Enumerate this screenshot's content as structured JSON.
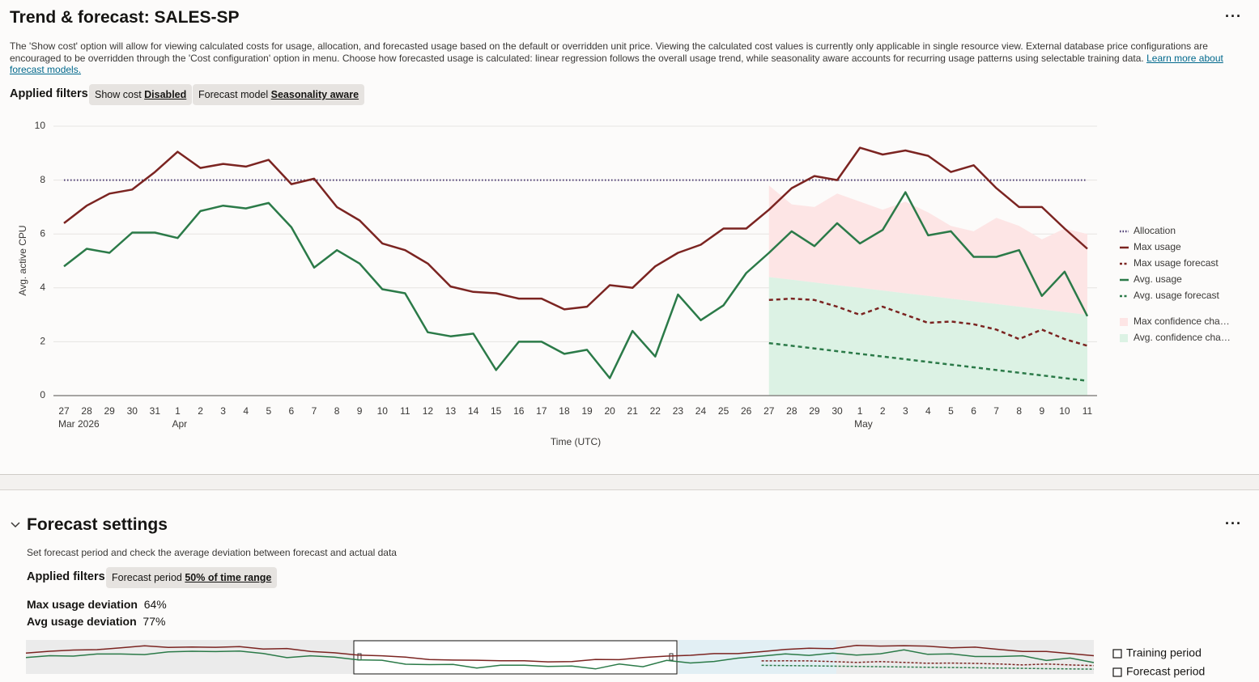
{
  "header": {
    "title": "Trend & forecast: SALES-SP"
  },
  "description": {
    "text": "The 'Show cost' option will allow for viewing calculated costs for usage, allocation, and forecasted usage based on the default or overridden unit price. Viewing the calculated cost values is currently only applicable in single resource view. External database price configurations are encouraged to be overridden through the 'Cost configuration' option in menu. Choose how forecasted usage is calculated: linear regression follows the overall usage trend, while seasonality aware accounts for recurring usage patterns using selectable training data.",
    "link": "Learn more about forecast models."
  },
  "filters_label": "Applied filters",
  "filters": [
    {
      "label": "Show cost",
      "value": "Disabled"
    },
    {
      "label": "Forecast model",
      "value": "Seasonality aware"
    }
  ],
  "chart_data": {
    "type": "line",
    "y_label": "Avg. active CPU",
    "x_label": "Time (UTC)",
    "categories": [
      "27",
      "28",
      "29",
      "30",
      "31",
      "1",
      "2",
      "3",
      "4",
      "5",
      "6",
      "7",
      "8",
      "9",
      "10",
      "11",
      "12",
      "13",
      "14",
      "15",
      "16",
      "17",
      "18",
      "19",
      "20",
      "21",
      "22",
      "23",
      "24",
      "25",
      "26",
      "27",
      "28",
      "29",
      "30",
      "1",
      "2",
      "3",
      "4",
      "5",
      "6",
      "7",
      "8",
      "9",
      "10",
      "11"
    ],
    "category_groups": [
      {
        "label": "Mar 2026",
        "first": 0
      },
      {
        "label": "Apr",
        "first": 5
      },
      {
        "label": "May",
        "first": 35
      }
    ],
    "ylim": [
      0,
      10
    ],
    "yticks": [
      0,
      2,
      4,
      6,
      8,
      10
    ],
    "grid": true,
    "series": [
      {
        "name": "Allocation",
        "color": "#4b3b72",
        "style": "dotted",
        "value": 8
      },
      {
        "name": "Max usage",
        "color": "#7b2421",
        "style": "solid",
        "values": [
          6.4,
          7.05,
          7.5,
          7.65,
          8.3,
          9.05,
          8.45,
          8.6,
          8.5,
          8.75,
          7.85,
          8.05,
          7.0,
          6.5,
          5.65,
          5.4,
          4.9,
          4.05,
          3.85,
          3.8,
          3.6,
          3.6,
          3.2,
          3.3,
          4.1,
          4.0,
          4.8,
          5.3,
          5.6,
          6.2,
          6.2,
          6.9,
          7.7,
          8.15,
          8.0,
          9.2,
          8.95,
          9.1,
          8.9,
          8.3,
          8.55,
          7.7,
          7.0,
          7.0,
          6.2,
          5.45
        ]
      },
      {
        "name": "Max usage forecast",
        "color": "#7b2421",
        "style": "dashed",
        "values": [
          null,
          null,
          null,
          null,
          null,
          null,
          null,
          null,
          null,
          null,
          null,
          null,
          null,
          null,
          null,
          null,
          null,
          null,
          null,
          null,
          null,
          null,
          null,
          null,
          null,
          null,
          null,
          null,
          null,
          null,
          null,
          3.55,
          3.6,
          3.55,
          3.3,
          3.0,
          3.3,
          3.0,
          2.7,
          2.75,
          2.65,
          2.45,
          2.1,
          2.45,
          2.1,
          1.85
        ]
      },
      {
        "name": "Avg. usage",
        "color": "#2b7a48",
        "style": "solid",
        "values": [
          4.8,
          5.45,
          5.3,
          6.05,
          6.05,
          5.85,
          6.85,
          7.05,
          6.95,
          7.15,
          6.25,
          4.75,
          5.4,
          4.9,
          3.95,
          3.8,
          2.35,
          2.2,
          2.3,
          0.95,
          2.0,
          2.0,
          1.55,
          1.7,
          0.65,
          2.4,
          1.45,
          3.75,
          2.8,
          3.35,
          4.55,
          5.3,
          6.1,
          5.55,
          6.4,
          5.65,
          6.15,
          7.55,
          5.95,
          6.1,
          5.15,
          5.15,
          5.4,
          3.7,
          4.6,
          2.95
        ]
      },
      {
        "name": "Avg. usage forecast",
        "color": "#2b7a48",
        "style": "dashed",
        "values": [
          null,
          null,
          null,
          null,
          null,
          null,
          null,
          null,
          null,
          null,
          null,
          null,
          null,
          null,
          null,
          null,
          null,
          null,
          null,
          null,
          null,
          null,
          null,
          null,
          null,
          null,
          null,
          null,
          null,
          null,
          null,
          1.95,
          1.85,
          1.75,
          1.65,
          1.55,
          1.45,
          1.35,
          1.25,
          1.15,
          1.05,
          0.95,
          0.85,
          0.75,
          0.65,
          0.55
        ]
      }
    ],
    "bands": [
      {
        "name": "Max confidence cha…",
        "color": "#fde5e5",
        "upper": [
          null,
          null,
          null,
          null,
          null,
          null,
          null,
          null,
          null,
          null,
          null,
          null,
          null,
          null,
          null,
          null,
          null,
          null,
          null,
          null,
          null,
          null,
          null,
          null,
          null,
          null,
          null,
          null,
          null,
          null,
          null,
          7.8,
          7.1,
          7.0,
          7.5,
          7.2,
          6.9,
          7.2,
          6.8,
          6.3,
          6.1,
          6.6,
          6.3,
          5.8,
          6.2,
          6.0
        ],
        "lower": [
          null,
          null,
          null,
          null,
          null,
          null,
          null,
          null,
          null,
          null,
          null,
          null,
          null,
          null,
          null,
          null,
          null,
          null,
          null,
          null,
          null,
          null,
          null,
          null,
          null,
          null,
          null,
          null,
          null,
          null,
          null,
          4.4,
          4.3,
          4.2,
          4.1,
          4.0,
          3.9,
          3.8,
          3.7,
          3.6,
          3.5,
          3.4,
          3.3,
          3.2,
          3.1,
          3.0
        ]
      },
      {
        "name": "Avg. confidence cha…",
        "color": "#dcf2e4",
        "upper": [
          null,
          null,
          null,
          null,
          null,
          null,
          null,
          null,
          null,
          null,
          null,
          null,
          null,
          null,
          null,
          null,
          null,
          null,
          null,
          null,
          null,
          null,
          null,
          null,
          null,
          null,
          null,
          null,
          null,
          null,
          null,
          4.4,
          4.3,
          4.2,
          4.1,
          4.0,
          3.9,
          3.8,
          3.7,
          3.6,
          3.5,
          3.4,
          3.3,
          3.2,
          3.1,
          3.0
        ],
        "lower": [
          null,
          null,
          null,
          null,
          null,
          null,
          null,
          null,
          null,
          null,
          null,
          null,
          null,
          null,
          null,
          null,
          null,
          null,
          null,
          null,
          null,
          null,
          null,
          null,
          null,
          null,
          null,
          null,
          null,
          null,
          null,
          0,
          0,
          0,
          0,
          0,
          0,
          0,
          0,
          0,
          0,
          0,
          0,
          0,
          0,
          0
        ]
      }
    ]
  },
  "forecast_settings": {
    "title": "Forecast settings",
    "description": "Set forecast period and check the average deviation between forecast and actual data",
    "filters_label": "Applied filters",
    "filters": [
      {
        "label": "Forecast period",
        "value": "50% of time range"
      }
    ],
    "deviations": [
      {
        "label": "Max usage deviation",
        "value": "64%"
      },
      {
        "label": "Avg usage deviation",
        "value": "77%"
      }
    ],
    "navigator_legend": [
      "Training period",
      "Forecast period"
    ]
  }
}
